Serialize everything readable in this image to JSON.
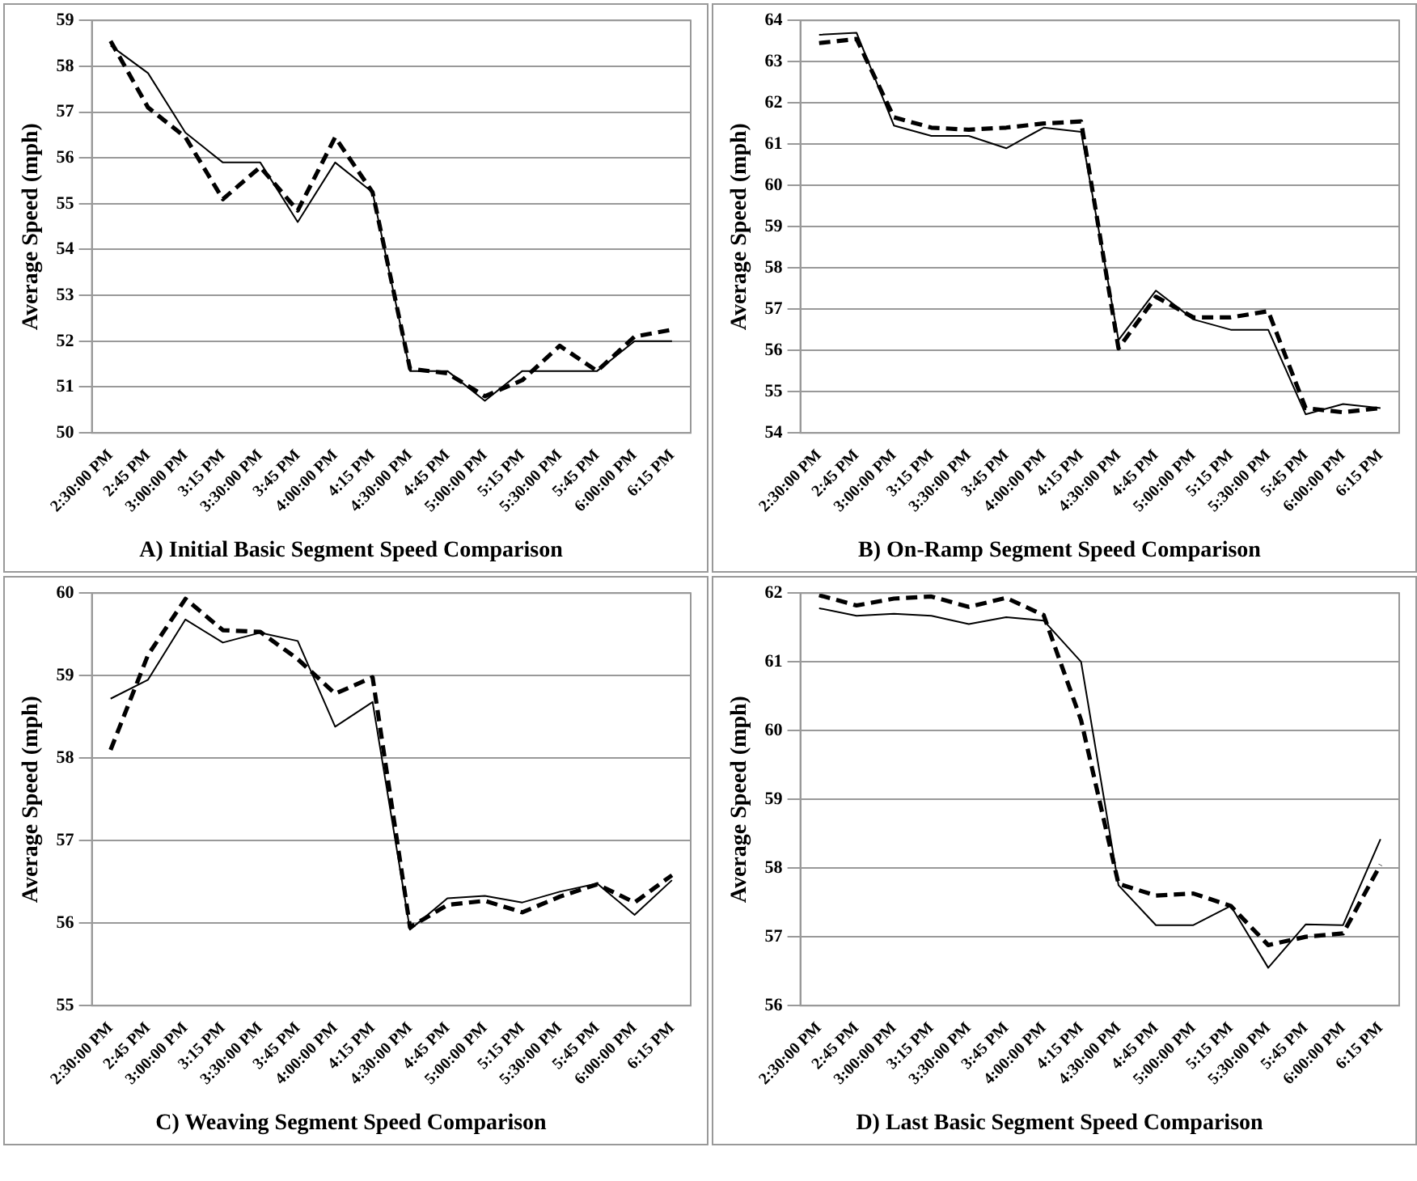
{
  "chart_data": [
    {
      "type": "line",
      "title": "A) Initial Basic Segment Speed Comparison",
      "ylabel": "Average Speed (mph)",
      "categories": [
        "2:30:00 PM",
        "2:45 PM",
        "3:00:00 PM",
        "3:15 PM",
        "3:30:00 PM",
        "3:45 PM",
        "4:00:00 PM",
        "4:15 PM",
        "4:30:00 PM",
        "4:45 PM",
        "5:00:00 PM",
        "5:15 PM",
        "5:30:00 PM",
        "5:45 PM",
        "6:00:00 PM",
        "6:15 PM"
      ],
      "ylim": [
        50,
        59
      ],
      "yticks": [
        50,
        51,
        52,
        53,
        54,
        55,
        56,
        57,
        58,
        59
      ],
      "grid": "y",
      "legend": false,
      "marker": "none",
      "series": [
        {
          "color": "#000000",
          "line_style": "dashed",
          "values": [
            58.55,
            57.1,
            56.45,
            55.1,
            55.8,
            54.85,
            56.45,
            55.25,
            51.4,
            51.3,
            50.8,
            51.15,
            51.9,
            51.35,
            52.1,
            52.25
          ]
        },
        {
          "color": "#000000",
          "line_style": "solid",
          "values": [
            58.45,
            57.85,
            56.55,
            55.9,
            55.9,
            54.6,
            55.9,
            55.25,
            51.35,
            51.35,
            50.7,
            51.35,
            51.35,
            51.35,
            52.0,
            52.0
          ]
        }
      ]
    },
    {
      "type": "line",
      "title": "B) On-Ramp Segment Speed Comparison",
      "ylabel": "Average Speed (mph)",
      "categories": [
        "2:30:00 PM",
        "2:45 PM",
        "3:00:00 PM",
        "3:15 PM",
        "3:30:00 PM",
        "3:45 PM",
        "4:00:00 PM",
        "4:15 PM",
        "4:30:00 PM",
        "4:45 PM",
        "5:00:00 PM",
        "5:15 PM",
        "5:30:00 PM",
        "5:45 PM",
        "6:00:00 PM",
        "6:15 PM"
      ],
      "ylim": [
        54,
        64
      ],
      "yticks": [
        54,
        55,
        56,
        57,
        58,
        59,
        60,
        61,
        62,
        63,
        64
      ],
      "grid": "y",
      "legend": false,
      "marker": "none",
      "series": [
        {
          "color": "#000000",
          "line_style": "dashed",
          "values": [
            63.45,
            63.55,
            61.65,
            61.4,
            61.35,
            61.4,
            61.5,
            61.55,
            56.05,
            57.3,
            56.8,
            56.8,
            56.95,
            54.6,
            54.5,
            54.6
          ]
        },
        {
          "color": "#000000",
          "line_style": "solid",
          "values": [
            63.65,
            63.7,
            61.45,
            61.2,
            61.2,
            60.9,
            61.4,
            61.3,
            56.25,
            57.45,
            56.75,
            56.5,
            56.5,
            54.45,
            54.7,
            54.6
          ]
        }
      ]
    },
    {
      "type": "line",
      "title": "C) Weaving Segment Speed Comparison",
      "ylabel": "Average Speed (mph)",
      "categories": [
        "2:30:00 PM",
        "2:45 PM",
        "3:00:00 PM",
        "3:15 PM",
        "3:30:00 PM",
        "3:45 PM",
        "4:00:00 PM",
        "4:15 PM",
        "4:30:00 PM",
        "4:45 PM",
        "5:00:00 PM",
        "5:15 PM",
        "5:30:00 PM",
        "5:45 PM",
        "6:00:00 PM",
        "6:15 PM"
      ],
      "ylim": [
        55,
        60
      ],
      "yticks": [
        55,
        56,
        57,
        58,
        59,
        60
      ],
      "grid": "y",
      "legend": false,
      "marker": "none",
      "series": [
        {
          "color": "#000000",
          "line_style": "dashed",
          "values": [
            58.1,
            59.25,
            59.93,
            59.55,
            59.53,
            59.2,
            58.78,
            58.98,
            55.95,
            56.22,
            56.27,
            56.13,
            56.32,
            56.47,
            56.25,
            56.58
          ]
        },
        {
          "color": "#000000",
          "line_style": "solid",
          "values": [
            58.72,
            58.95,
            59.68,
            59.4,
            59.52,
            59.42,
            58.38,
            58.68,
            55.92,
            56.3,
            56.33,
            56.25,
            56.38,
            56.48,
            56.1,
            56.52
          ]
        }
      ]
    },
    {
      "type": "line",
      "title": "D) Last Basic Segment Speed Comparison",
      "ylabel": "Average Speed (mph)",
      "categories": [
        "2:30:00 PM",
        "2:45 PM",
        "3:00:00 PM",
        "3:15 PM",
        "3:30:00 PM",
        "3:45 PM",
        "4:00:00 PM",
        "4:15 PM",
        "4:30:00 PM",
        "4:45 PM",
        "5:00:00 PM",
        "5:15 PM",
        "5:30:00 PM",
        "5:45 PM",
        "6:00:00 PM",
        "6:15 PM"
      ],
      "ylim": [
        56,
        62
      ],
      "yticks": [
        56,
        57,
        58,
        59,
        60,
        61,
        62
      ],
      "grid": "y",
      "legend": false,
      "marker": "none",
      "series": [
        {
          "color": "#000000",
          "line_style": "dashed",
          "values": [
            61.97,
            61.82,
            61.92,
            61.95,
            61.8,
            61.93,
            61.68,
            60.15,
            57.77,
            57.6,
            57.63,
            57.45,
            56.88,
            57.0,
            57.05,
            58.05
          ]
        },
        {
          "color": "#000000",
          "line_style": "solid",
          "values": [
            61.78,
            61.67,
            61.7,
            61.67,
            61.55,
            61.65,
            61.6,
            61.0,
            57.75,
            57.17,
            57.17,
            57.45,
            56.55,
            57.18,
            57.17,
            58.42
          ]
        }
      ]
    }
  ]
}
